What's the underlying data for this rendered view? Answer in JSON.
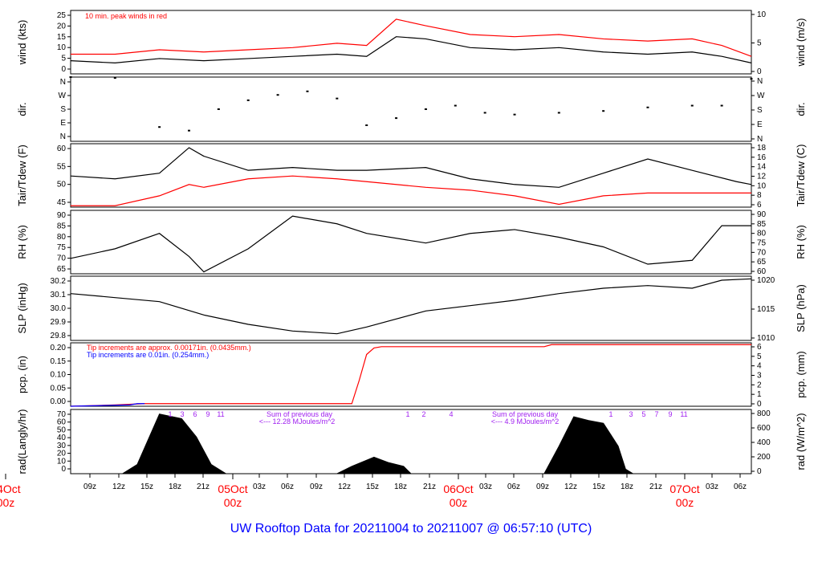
{
  "title": "UW Rooftop Data for 20211004  to  20211007 @ 06:57:10  (UTC)",
  "colors": {
    "primary": "#000000",
    "secondary": "#ff0000",
    "blue": "#0000ff",
    "purple": "#a020f0"
  },
  "x_axis": {
    "hour_ticks": [
      "09z",
      "12z",
      "15z",
      "18z",
      "21z",
      "03z",
      "06z",
      "09z",
      "12z",
      "15z",
      "18z",
      "21z",
      "03z",
      "06z",
      "09z",
      "12z",
      "15z",
      "18z",
      "21z",
      "03z",
      "06z"
    ],
    "day_labels": [
      {
        "date": "04Oct",
        "time": "00z"
      },
      {
        "date": "05Oct",
        "time": "00z"
      },
      {
        "date": "06Oct",
        "time": "00z"
      },
      {
        "date": "07Oct",
        "time": "00z"
      }
    ]
  },
  "chart_data": [
    {
      "type": "line",
      "name": "wind",
      "ylabel_left": "wind (kts)",
      "ylabel_right": "wind (m/s)",
      "left_ticks": [
        "0",
        "5",
        "10",
        "15",
        "20",
        "25"
      ],
      "right_ticks": [
        "0",
        "5",
        "10"
      ],
      "ylim": [
        0,
        29
      ],
      "annotation": "10 min. peak winds in red",
      "series": [
        {
          "color": "black",
          "x": [
            0,
            6,
            12,
            18,
            24,
            30,
            36,
            40,
            44,
            48,
            54,
            60,
            66,
            72,
            78,
            84,
            88,
            92
          ],
          "y": [
            6,
            5,
            7,
            6,
            7,
            8,
            9,
            8,
            17,
            16,
            12,
            11,
            12,
            10,
            9,
            10,
            8,
            5
          ]
        },
        {
          "color": "red",
          "x": [
            0,
            6,
            12,
            18,
            24,
            30,
            36,
            40,
            44,
            48,
            54,
            60,
            66,
            72,
            78,
            84,
            88,
            92
          ],
          "y": [
            9,
            9,
            11,
            10,
            11,
            12,
            14,
            13,
            25,
            22,
            18,
            17,
            18,
            16,
            15,
            16,
            13,
            8
          ]
        }
      ]
    },
    {
      "type": "scatter",
      "name": "direction",
      "ylabel_left": "dir.",
      "ylabel_right": "dir.",
      "left_ticks": [
        "N",
        "E",
        "S",
        "W",
        "N"
      ],
      "right_ticks": [
        "N",
        "E",
        "S",
        "W",
        "N"
      ],
      "ylim": [
        0,
        360
      ],
      "series": [
        {
          "x": [
            0,
            6,
            12,
            16,
            20,
            24,
            28,
            32,
            36,
            40,
            44,
            48,
            52,
            56,
            60,
            66,
            72,
            78,
            84,
            88,
            92
          ],
          "y": [
            360,
            355,
            80,
            60,
            180,
            230,
            260,
            280,
            240,
            90,
            130,
            180,
            200,
            160,
            150,
            160,
            170,
            190,
            200,
            200,
            350
          ]
        }
      ]
    },
    {
      "type": "line",
      "name": "temperature",
      "ylabel_left": "Tair/Tdew (F)",
      "ylabel_right": "Tair/Tdew (C)",
      "left_ticks": [
        "45",
        "50",
        "55",
        "60"
      ],
      "right_ticks": [
        "6",
        "8",
        "10",
        "12",
        "14",
        "16",
        "18"
      ],
      "ylim": [
        42,
        64.4
      ],
      "series": [
        {
          "name": "Tair",
          "color": "black",
          "x": [
            0,
            6,
            12,
            16,
            18,
            24,
            30,
            36,
            40,
            48,
            54,
            60,
            66,
            72,
            78,
            84,
            90,
            92
          ],
          "y": [
            53,
            52,
            54,
            63,
            60,
            55,
            56,
            55,
            55,
            56,
            52,
            50,
            49,
            54,
            59,
            55,
            51,
            50
          ]
        },
        {
          "name": "Tdew",
          "color": "red",
          "x": [
            0,
            6,
            12,
            16,
            18,
            24,
            30,
            36,
            40,
            48,
            54,
            60,
            66,
            72,
            78,
            84,
            90,
            92
          ],
          "y": [
            42.5,
            42.5,
            46,
            50,
            49,
            52,
            53,
            52,
            51,
            49,
            48,
            46,
            43,
            46,
            47,
            47,
            47,
            47
          ]
        }
      ]
    },
    {
      "type": "line",
      "name": "humidity",
      "ylabel_left": "RH (%)",
      "ylabel_right": "RH (%)",
      "left_ticks": [
        "65",
        "70",
        "75",
        "80",
        "85",
        "90"
      ],
      "right_ticks": [
        "60",
        "65",
        "70",
        "75",
        "80",
        "85",
        "90"
      ],
      "ylim": [
        59,
        92
      ],
      "series": [
        {
          "color": "black",
          "x": [
            0,
            6,
            12,
            16,
            18,
            24,
            30,
            36,
            40,
            48,
            54,
            60,
            66,
            72,
            78,
            84,
            88,
            92
          ],
          "y": [
            67,
            72,
            80,
            68,
            60,
            72,
            89,
            85,
            80,
            75,
            80,
            82,
            78,
            73,
            64,
            66,
            84,
            84
          ]
        }
      ]
    },
    {
      "type": "line",
      "name": "pressure",
      "ylabel_left": "SLP (inHg)",
      "ylabel_right": "SLP (hPa)",
      "left_ticks": [
        "29.8",
        "29.9",
        "30.0",
        "30.1",
        "30.2"
      ],
      "right_ticks": [
        "1010",
        "1015",
        "1020"
      ],
      "ylim": [
        29.78,
        30.26
      ],
      "series": [
        {
          "color": "black",
          "x": [
            0,
            6,
            12,
            18,
            24,
            30,
            36,
            40,
            48,
            54,
            60,
            66,
            72,
            78,
            84,
            88,
            92
          ],
          "y": [
            30.13,
            30.1,
            30.07,
            29.97,
            29.9,
            29.85,
            29.83,
            29.88,
            30.0,
            30.04,
            30.08,
            30.13,
            30.17,
            30.19,
            30.17,
            30.23,
            30.24
          ]
        }
      ]
    },
    {
      "type": "line",
      "name": "precipitation",
      "ylabel_left": "pcp. (in)",
      "ylabel_right": "pcp. (mm)",
      "left_ticks": [
        "0.00",
        "0.05",
        "0.10",
        "0.15",
        "0.20"
      ],
      "right_ticks": [
        "0",
        "1",
        "2",
        "3",
        "4",
        "5",
        "6"
      ],
      "ylim": [
        0,
        0.245
      ],
      "annotations": [
        "Tip increments are approx. 0.00171in. (0.0435mm.)",
        "Tip increments are 0.01in. (0.254mm.)"
      ],
      "series": [
        {
          "name": "approx",
          "color": "red",
          "x": [
            0,
            6,
            10,
            38,
            39,
            40,
            41,
            42,
            64,
            65,
            92
          ],
          "y": [
            0.0,
            0.005,
            0.01,
            0.01,
            0.1,
            0.2,
            0.225,
            0.23,
            0.23,
            0.238,
            0.238
          ]
        },
        {
          "name": "tip",
          "color": "blue",
          "x": [
            0,
            8,
            9,
            10
          ],
          "y": [
            0.0,
            0.005,
            0.01,
            0.01
          ]
        }
      ]
    },
    {
      "type": "area",
      "name": "radiation",
      "ylabel_left": "rad(Langly/hr)",
      "ylabel_right": "rad (W/m^2)",
      "left_ticks": [
        "0",
        "10",
        "20",
        "30",
        "40",
        "50",
        "60",
        "70"
      ],
      "right_ticks": [
        "0",
        "200",
        "400",
        "600",
        "800"
      ],
      "ylim": [
        0,
        70
      ],
      "annotations": [
        "Sum of previous day",
        "<--- 12.28 MJoules/m^2",
        "Sum of previous day",
        "<--- 4.9 MJoules/m^2"
      ],
      "markers": [
        "1",
        "3",
        "6",
        "9",
        "11",
        "1",
        "2",
        "4",
        "1",
        "3",
        "5",
        "7",
        "9",
        "11"
      ],
      "series": [
        {
          "color": "black",
          "x": [
            7,
            9,
            12,
            15,
            17,
            19,
            21,
            36,
            38,
            41,
            43,
            45,
            46,
            64,
            66,
            68,
            70,
            72,
            74,
            75,
            76
          ],
          "y": [
            0,
            10,
            65,
            60,
            40,
            10,
            0,
            0,
            8,
            18,
            12,
            8,
            0,
            0,
            30,
            62,
            58,
            55,
            30,
            5,
            0
          ]
        }
      ]
    }
  ]
}
